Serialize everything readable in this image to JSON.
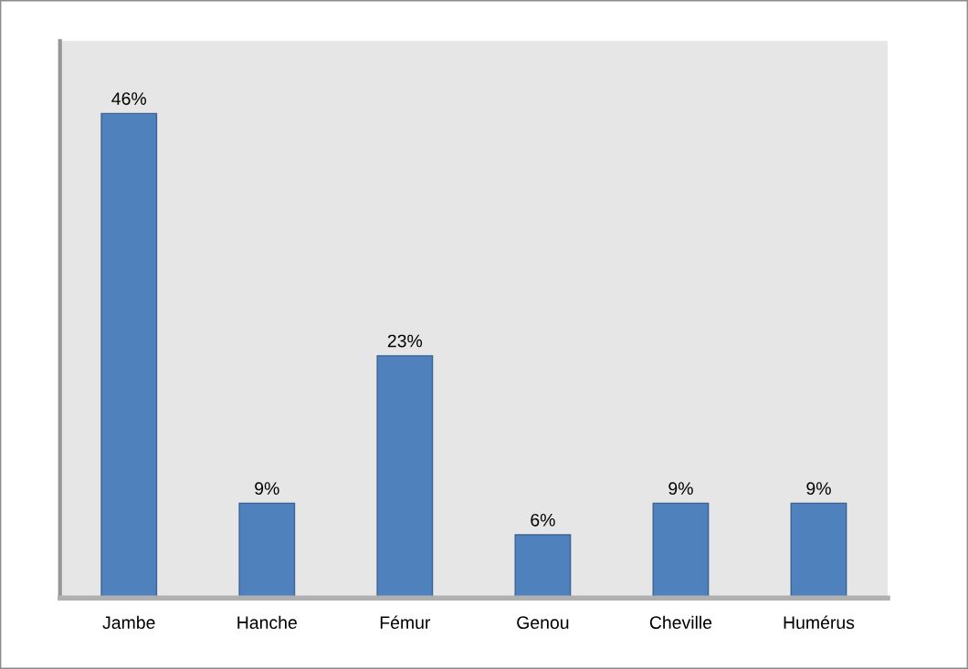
{
  "chart_data": {
    "type": "bar",
    "categories": [
      "Jambe",
      "Hanche",
      "Fémur",
      "Genou",
      "Cheville",
      "Humérus"
    ],
    "values": [
      46,
      9,
      23,
      6,
      9,
      9
    ],
    "color": "#4f81bd",
    "value_labels": [
      "46%",
      "9%",
      "23%",
      "6%",
      "9%",
      "9%"
    ],
    "tick_labels": "x",
    "grid": false
  }
}
